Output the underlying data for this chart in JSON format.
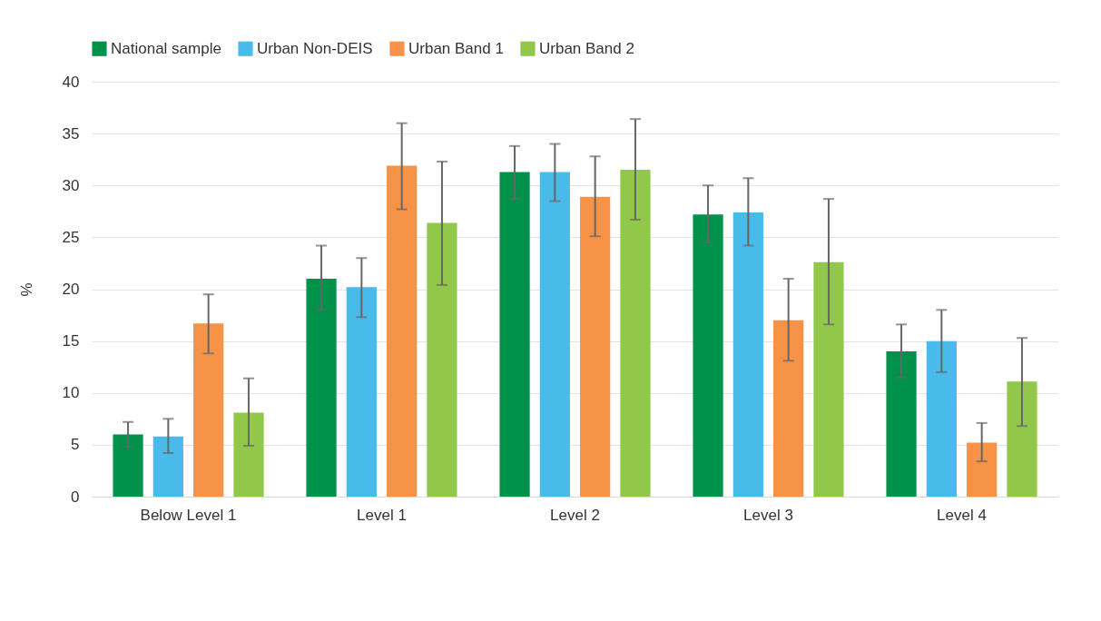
{
  "chart_data": {
    "type": "bar",
    "ylabel": "%",
    "categories": [
      "Below Level 1",
      "Level 1",
      "Level 2",
      "Level 3",
      "Level 4"
    ],
    "ylim": [
      0,
      40
    ],
    "yticks": [
      0,
      5,
      10,
      15,
      20,
      25,
      30,
      35,
      40
    ],
    "grid": "y",
    "legend": "top",
    "series": [
      {
        "name": "National sample",
        "color": "#00924a",
        "values": [
          6.0,
          21.0,
          31.3,
          27.2,
          14.0
        ],
        "errors": [
          [
            4.8,
            7.2
          ],
          [
            18.0,
            24.2
          ],
          [
            28.7,
            33.8
          ],
          [
            24.5,
            30.0
          ],
          [
            11.5,
            16.6
          ]
        ]
      },
      {
        "name": "Urban Non-DEIS",
        "color": "#48bbeb",
        "values": [
          5.8,
          20.2,
          31.3,
          27.4,
          15.0
        ],
        "errors": [
          [
            4.2,
            7.5
          ],
          [
            17.3,
            23.0
          ],
          [
            28.5,
            34.0
          ],
          [
            24.2,
            30.7
          ],
          [
            12.0,
            18.0
          ]
        ]
      },
      {
        "name": "Urban Band 1",
        "color": "#f69347",
        "values": [
          16.7,
          31.9,
          28.9,
          17.0,
          5.2
        ],
        "errors": [
          [
            13.8,
            19.5
          ],
          [
            27.7,
            36.0
          ],
          [
            25.1,
            32.8
          ],
          [
            13.1,
            21.0
          ],
          [
            3.4,
            7.1
          ]
        ]
      },
      {
        "name": "Urban Band 2",
        "color": "#92c84a",
        "values": [
          8.1,
          26.4,
          31.5,
          22.6,
          11.1
        ],
        "errors": [
          [
            4.9,
            11.4
          ],
          [
            20.4,
            32.3
          ],
          [
            26.7,
            36.4
          ],
          [
            16.6,
            28.7
          ],
          [
            6.8,
            15.3
          ]
        ]
      }
    ]
  }
}
